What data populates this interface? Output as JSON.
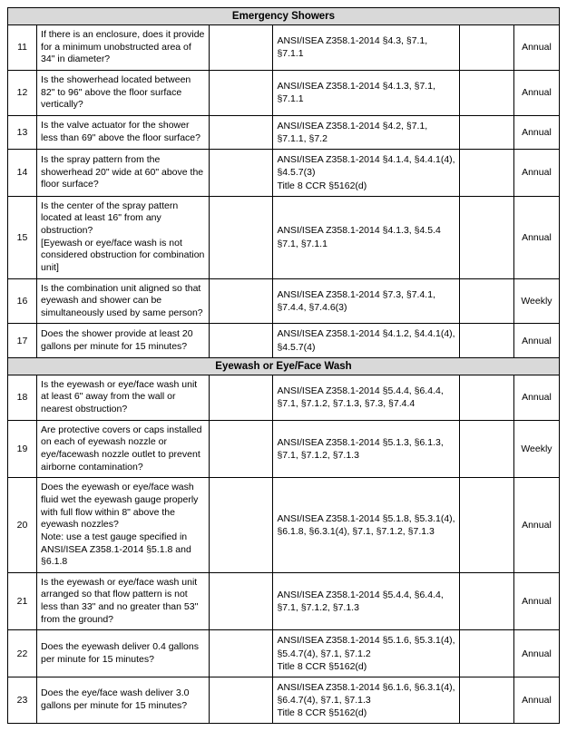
{
  "sections": [
    {
      "title": "Emergency Showers",
      "rows": [
        {
          "num": "11",
          "question": "If there is an enclosure, does it provide for a minimum unobstructed area of 34\" in diameter?",
          "ref": "ANSI/ISEA Z358.1-2014 §4.3, §7.1, §7.1.1",
          "freq": "Annual"
        },
        {
          "num": "12",
          "question": "Is the showerhead located between 82\" to 96\" above the floor surface vertically?",
          "ref": "ANSI/ISEA Z358.1-2014 §4.1.3, §7.1, §7.1.1",
          "freq": "Annual"
        },
        {
          "num": "13",
          "question": "Is the valve actuator for the shower less than 69\" above the floor surface?",
          "ref": "ANSI/ISEA Z358.1-2014 §4.2, §7.1, §7.1.1, §7.2",
          "freq": "Annual"
        },
        {
          "num": "14",
          "question": "Is the spray pattern from the showerhead 20\" wide at 60\" above the floor surface?",
          "ref": "ANSI/ISEA Z358.1-2014 §4.1.4, §4.4.1(4), §4.5.7(3)\nTitle 8 CCR §5162(d)",
          "freq": "Annual"
        },
        {
          "num": "15",
          "question": "Is the center of the spray pattern located at least 16\" from any obstruction?\n[Eyewash or eye/face wash is not considered obstruction for combination unit]",
          "ref": "ANSI/ISEA Z358.1-2014 §4.1.3, §4.5.4 §7.1, §7.1.1",
          "freq": "Annual"
        },
        {
          "num": "16",
          "question": "Is the combination unit aligned so that eyewash and shower can be simultaneously used by same person?",
          "ref": "ANSI/ISEA Z358.1-2014 §7.3, §7.4.1, §7.4.4, §7.4.6(3)",
          "freq": "Weekly"
        },
        {
          "num": "17",
          "question": "Does the shower provide at least 20 gallons per minute for 15 minutes?",
          "ref": "ANSI/ISEA Z358.1-2014 §4.1.2, §4.4.1(4), §4.5.7(4)",
          "freq": "Annual"
        }
      ]
    },
    {
      "title": "Eyewash or Eye/Face Wash",
      "rows": [
        {
          "num": "18",
          "question": "Is the eyewash or eye/face wash unit at least 6\" away from the wall or nearest obstruction?",
          "ref": "ANSI/ISEA Z358.1-2014 §5.4.4, §6.4.4, §7.1, §7.1.2, §7.1.3, §7.3, §7.4.4",
          "freq": "Annual"
        },
        {
          "num": "19",
          "question": "Are protective covers or caps installed on each of eyewash nozzle or eye/facewash nozzle outlet to prevent airborne contamination?",
          "ref": "ANSI/ISEA Z358.1-2014 §5.1.3, §6.1.3, §7.1, §7.1.2, §7.1.3",
          "freq": "Weekly"
        },
        {
          "num": "20",
          "question": "Does the eyewash or eye/face wash fluid wet the eyewash gauge properly with full flow within 8\" above the eyewash nozzles?\nNote: use a test gauge specified in ANSI/ISEA Z358.1-2014 §5.1.8 and §6.1.8",
          "ref": "ANSI/ISEA Z358.1-2014 §5.1.8, §5.3.1(4), §6.1.8, §6.3.1(4), §7.1, §7.1.2, §7.1.3",
          "freq": "Annual"
        },
        {
          "num": "21",
          "question": "Is the eyewash or eye/face wash unit arranged so that flow pattern is not less than 33\" and no greater than 53\" from the ground?",
          "ref": "ANSI/ISEA Z358.1-2014 §5.4.4, §6.4.4, §7.1, §7.1.2, §7.1.3",
          "freq": "Annual"
        },
        {
          "num": "22",
          "question": "Does the eyewash deliver 0.4 gallons per minute for 15 minutes?",
          "ref": "ANSI/ISEA Z358.1-2014 §5.1.6, §5.3.1(4), §5.4.7(4), §7.1, §7.1.2\nTitle 8 CCR §5162(d)",
          "freq": "Annual"
        },
        {
          "num": "23",
          "question": "Does the eye/face wash deliver 3.0 gallons per minute for 15 minutes?",
          "ref": "ANSI/ISEA Z358.1-2014 §6.1.6, §6.3.1(4), §6.4.7(4), §7.1, §7.1.3\nTitle 8 CCR §5162(d)",
          "freq": "Annual"
        }
      ]
    }
  ]
}
